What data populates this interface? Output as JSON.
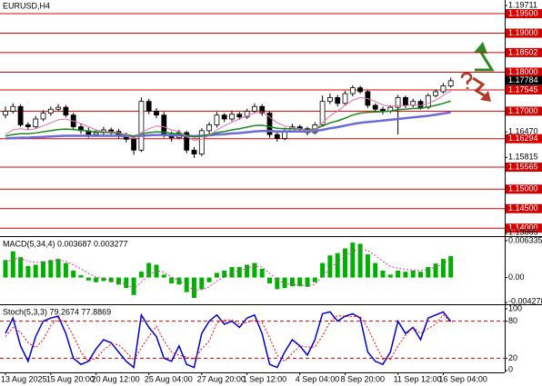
{
  "chart_data": [
    {
      "type": "candlestick",
      "title": "EURUSD,H4",
      "categories": [
        "13 Aug 2025",
        null,
        null,
        null,
        null,
        null,
        "15 Aug 20:00",
        null,
        null,
        null,
        null,
        null,
        "20 Aug 12:00",
        null,
        null,
        null,
        null,
        null,
        null,
        "25 Aug 04:00",
        null,
        null,
        null,
        null,
        null,
        null,
        "27 Aug 20:00",
        null,
        null,
        null,
        null,
        null,
        "1 Sep 12:00",
        null,
        null,
        null,
        null,
        null,
        null,
        "4 Sep 04:00",
        null,
        null,
        null,
        null,
        null,
        "8 Sep 20:00",
        null,
        null,
        null,
        null,
        null,
        null,
        "11 Sep 12:00",
        null,
        null,
        null,
        null,
        null,
        "16 Sep 04:00",
        null
      ],
      "open": [
        1.169,
        1.17,
        1.1712,
        1.1665,
        1.166,
        1.168,
        1.1695,
        1.1705,
        1.171,
        1.169,
        1.166,
        1.165,
        1.164,
        1.1645,
        1.1652,
        1.1648,
        1.1638,
        1.1628,
        1.16,
        1.1725,
        1.17,
        1.169,
        1.164,
        1.1632,
        1.1645,
        1.16,
        1.159,
        1.165,
        1.1665,
        1.169,
        1.168,
        1.1692,
        1.1685,
        1.17,
        1.1712,
        1.1695,
        1.164,
        1.163,
        1.165,
        1.166,
        1.1655,
        1.1645,
        1.1665,
        1.1725,
        1.1735,
        1.172,
        1.1745,
        1.176,
        1.175,
        1.1715,
        1.1705,
        1.17,
        1.171,
        1.1735,
        1.1715,
        1.1725,
        1.171,
        1.174,
        1.175,
        1.1765
      ],
      "high": [
        1.1712,
        1.172,
        1.1718,
        1.1672,
        1.1688,
        1.1702,
        1.1712,
        1.1718,
        1.1716,
        1.1696,
        1.1668,
        1.1658,
        1.1652,
        1.166,
        1.1658,
        1.1655,
        1.1645,
        1.1635,
        1.1735,
        1.1732,
        1.1708,
        1.1698,
        1.1648,
        1.1652,
        1.165,
        1.1608,
        1.1656,
        1.1672,
        1.1698,
        1.1695,
        1.17,
        1.1698,
        1.1706,
        1.172,
        1.1718,
        1.17,
        1.1645,
        1.1658,
        1.1668,
        1.1665,
        1.166,
        1.1672,
        1.174,
        1.1745,
        1.1742,
        1.1752,
        1.1766,
        1.1765,
        1.1755,
        1.172,
        1.1712,
        1.1715,
        1.1742,
        1.174,
        1.1732,
        1.173,
        1.1746,
        1.1756,
        1.1772,
        1.1786
      ],
      "low": [
        1.1682,
        1.1694,
        1.166,
        1.1652,
        1.1655,
        1.1674,
        1.1688,
        1.17,
        1.1684,
        1.1652,
        1.1642,
        1.1632,
        1.1635,
        1.1638,
        1.164,
        1.163,
        1.162,
        1.1588,
        1.1595,
        1.1692,
        1.1682,
        1.1632,
        1.1622,
        1.1628,
        1.1592,
        1.158,
        1.1584,
        1.1642,
        1.1658,
        1.1672,
        1.1674,
        1.1678,
        1.168,
        1.1694,
        1.1688,
        1.1632,
        1.1622,
        1.1625,
        1.1645,
        1.1648,
        1.1638,
        1.164,
        1.166,
        1.1718,
        1.1712,
        1.1715,
        1.1738,
        1.1745,
        1.1708,
        1.1698,
        1.1692,
        1.1695,
        1.164,
        1.1708,
        1.171,
        1.1704,
        1.1705,
        1.1735,
        1.1745,
        1.176
      ],
      "close": [
        1.17,
        1.1712,
        1.1665,
        1.166,
        1.168,
        1.1695,
        1.1705,
        1.171,
        1.169,
        1.166,
        1.165,
        1.164,
        1.1645,
        1.1652,
        1.1648,
        1.1638,
        1.1628,
        1.16,
        1.1725,
        1.17,
        1.169,
        1.164,
        1.1632,
        1.1645,
        1.16,
        1.159,
        1.165,
        1.1665,
        1.169,
        1.168,
        1.1692,
        1.1685,
        1.17,
        1.1712,
        1.1695,
        1.164,
        1.163,
        1.165,
        1.166,
        1.1655,
        1.1645,
        1.1665,
        1.1725,
        1.1735,
        1.172,
        1.1745,
        1.176,
        1.175,
        1.1715,
        1.1705,
        1.17,
        1.171,
        1.1735,
        1.1715,
        1.1725,
        1.171,
        1.174,
        1.175,
        1.1765,
        1.1778
      ],
      "bull_color": "#ffffff",
      "bear_color": "#000000",
      "wick_color": "#000000",
      "series": [
        {
          "color": "#6a6ad8",
          "width": 2.5,
          "values": [
            1.163,
            1.1631,
            1.1632,
            1.1632,
            1.1633,
            1.1634,
            1.1635,
            1.1636,
            1.1637,
            1.1637,
            1.1637,
            1.1637,
            1.1637,
            1.1637,
            1.1637,
            1.1637,
            1.1636,
            1.1635,
            1.1637,
            1.1638,
            1.1639,
            1.1639,
            1.1638,
            1.1638,
            1.1637,
            1.1636,
            1.1637,
            1.1638,
            1.164,
            1.1641,
            1.1643,
            1.1644,
            1.1646,
            1.1648,
            1.1649,
            1.1649,
            1.1648,
            1.1648,
            1.1648,
            1.1648,
            1.1648,
            1.1649,
            1.1652,
            1.1656,
            1.1659,
            1.1663,
            1.1667,
            1.167,
            1.1672,
            1.1674,
            1.1676,
            1.1678,
            1.168,
            1.1682,
            1.1684,
            1.1686,
            1.1688,
            1.1691,
            1.1694,
            1.1697
          ]
        },
        {
          "color": "#1a8a1a",
          "width": 1.5,
          "values": [
            1.1636,
            1.164,
            1.1642,
            1.1642,
            1.1644,
            1.1647,
            1.165,
            1.1653,
            1.1654,
            1.1653,
            1.1651,
            1.1649,
            1.1647,
            1.1646,
            1.1645,
            1.1643,
            1.164,
            1.1636,
            1.1642,
            1.1645,
            1.1647,
            1.1646,
            1.1643,
            1.1642,
            1.1638,
            1.1634,
            1.1636,
            1.164,
            1.1645,
            1.1648,
            1.1652,
            1.1655,
            1.1659,
            1.1663,
            1.1664,
            1.166,
            1.1656,
            1.1655,
            1.1655,
            1.1654,
            1.1652,
            1.1654,
            1.1662,
            1.167,
            1.1675,
            1.1682,
            1.169,
            1.1695,
            1.1697,
            1.1698,
            1.1699,
            1.17,
            1.1704,
            1.1705,
            1.1707,
            1.1707,
            1.1711,
            1.1715,
            1.172,
            1.1726
          ]
        },
        {
          "color": "#e070b0",
          "width": 1,
          "values": [
            1.164,
            1.1652,
            1.1655,
            1.1652,
            1.1655,
            1.1662,
            1.167,
            1.1678,
            1.168,
            1.1675,
            1.1668,
            1.166,
            1.1652,
            1.1648,
            1.1647,
            1.1645,
            1.164,
            1.163,
            1.1645,
            1.1655,
            1.1662,
            1.166,
            1.1652,
            1.1648,
            1.1635,
            1.1625,
            1.1628,
            1.1638,
            1.1652,
            1.1662,
            1.1672,
            1.168,
            1.1688,
            1.1695,
            1.1698,
            1.1685,
            1.167,
            1.1662,
            1.1658,
            1.1655,
            1.165,
            1.1652,
            1.167,
            1.1688,
            1.17,
            1.1715,
            1.1728,
            1.1735,
            1.1732,
            1.1725,
            1.1716,
            1.1712,
            1.1715,
            1.1714,
            1.1716,
            1.1714,
            1.172,
            1.1728,
            1.174,
            1.1752
          ]
        }
      ],
      "ylim": [
        1.13865,
        1.19711
      ],
      "yticks": [
        {
          "value": 1.19711,
          "label": "1.19711"
        },
        {
          "value": 1.1647,
          "label": "1.16470"
        },
        {
          "value": 1.15815,
          "label": "1.15815"
        },
        {
          "value": 1.13865,
          "label": "1.13865"
        }
      ],
      "levels": [
        {
          "value": 1.195,
          "label": "1.19500"
        },
        {
          "value": 1.19,
          "label": "1.19000"
        },
        {
          "value": 1.18502,
          "label": "1.18502"
        },
        {
          "value": 1.18,
          "label": "1.18000"
        },
        {
          "value": 1.17545,
          "label": "1.17545"
        },
        {
          "value": 1.17,
          "label": "1.17000"
        },
        {
          "value": 1.16294,
          "label": "1.16294"
        },
        {
          "value": 1.15565,
          "label": "1.15565"
        },
        {
          "value": 1.15,
          "label": "1.15000"
        },
        {
          "value": 1.145,
          "label": "1.14500"
        },
        {
          "value": 1.14,
          "label": "1.14000"
        }
      ],
      "level_color": "#d40000",
      "current_price": {
        "value": 1.17784,
        "label": "1.17784"
      }
    },
    {
      "type": "bar",
      "title": "MACD(5,34,4) 0.003687 0.003277",
      "series": [
        {
          "color": "#00b000",
          "values": [
            0.003,
            0.0045,
            0.0035,
            0.002,
            0.0022,
            0.0028,
            0.003,
            0.0032,
            0.0025,
            0.0012,
            0.0004,
            -0.0005,
            -0.0008,
            -0.0006,
            -0.0008,
            -0.0012,
            -0.0018,
            -0.003,
            0.001,
            0.0025,
            0.0022,
            0.0005,
            -0.001,
            -0.0012,
            -0.0025,
            -0.0035,
            -0.002,
            -0.0008,
            0.0008,
            0.0012,
            0.0018,
            0.0018,
            0.0022,
            0.0025,
            0.0015,
            -0.001,
            -0.002,
            -0.0018,
            -0.0015,
            -0.0015,
            -0.0016,
            -0.0008,
            0.0025,
            0.0038,
            0.0042,
            0.005,
            0.006,
            0.0058,
            0.004,
            0.0025,
            0.0012,
            0.0005,
            0.0012,
            0.001,
            0.0012,
            0.001,
            0.0018,
            0.0024,
            0.0032,
            0.0037
          ]
        },
        {
          "color": "#d040a0",
          "dashed": true,
          "values": [
            0.0025,
            0.0032,
            0.0033,
            0.0028,
            0.0026,
            0.0027,
            0.0028,
            0.003,
            0.0028,
            0.0022,
            0.0015,
            0.0007,
            0.0001,
            -0.0002,
            -0.0005,
            -0.0008,
            -0.0012,
            -0.0019,
            -0.0008,
            0.0005,
            0.0012,
            0.0009,
            0.0001,
            -0.0005,
            -0.0013,
            -0.0022,
            -0.0021,
            -0.0016,
            -0.0006,
            0.0001,
            0.0008,
            0.0012,
            0.0016,
            0.002,
            0.0018,
            0.0007,
            -0.0004,
            -0.001,
            -0.0012,
            -0.0013,
            -0.0014,
            -0.0012,
            0.0002,
            0.0016,
            0.0027,
            0.0036,
            0.0045,
            0.005,
            0.0046,
            0.0038,
            0.0028,
            0.0019,
            0.0016,
            0.0014,
            0.0013,
            0.0012,
            0.0014,
            0.0018,
            0.0023,
            0.0033
          ]
        }
      ],
      "ylim": [
        -0.004278,
        0.006335
      ],
      "yticks": [
        0.006335,
        {
          "value": 0,
          "label": "0.00"
        },
        -0.004278
      ]
    },
    {
      "type": "line",
      "title": "Stoch(5,3,3) 79.2674 77.8869",
      "series": [
        {
          "color": "#0000cc",
          "width": 1.5,
          "values": [
            60,
            85,
            40,
            15,
            55,
            80,
            85,
            88,
            60,
            20,
            10,
            15,
            35,
            50,
            45,
            30,
            15,
            5,
            90,
            70,
            55,
            20,
            15,
            40,
            10,
            5,
            60,
            80,
            90,
            75,
            80,
            70,
            85,
            90,
            60,
            10,
            5,
            30,
            50,
            40,
            25,
            50,
            92,
            95,
            80,
            88,
            92,
            85,
            30,
            15,
            10,
            30,
            80,
            60,
            70,
            50,
            85,
            90,
            95,
            79.2674
          ]
        },
        {
          "color": "#ff0000",
          "width": 1,
          "dashed": true,
          "values": [
            55,
            70,
            62,
            45,
            37,
            50,
            73,
            84,
            78,
            56,
            30,
            15,
            20,
            33,
            43,
            42,
            30,
            17,
            37,
            55,
            72,
            48,
            30,
            25,
            22,
            18,
            35,
            48,
            77,
            82,
            82,
            75,
            78,
            82,
            78,
            53,
            25,
            15,
            28,
            40,
            38,
            38,
            56,
            79,
            89,
            88,
            87,
            88,
            69,
            43,
            18,
            18,
            40,
            57,
            70,
            60,
            68,
            75,
            90,
            77.8869
          ]
        }
      ],
      "ylim": [
        0,
        100
      ],
      "yticks": [
        0,
        20,
        80,
        100
      ],
      "levels": [
        20,
        80
      ],
      "level_color": "#d40000"
    }
  ]
}
